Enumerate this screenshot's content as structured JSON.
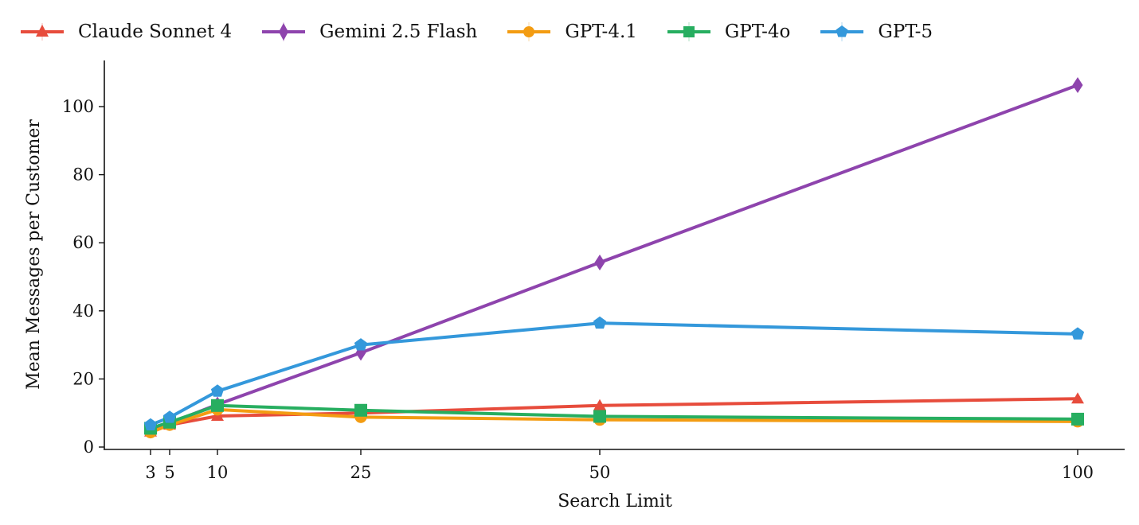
{
  "chart_data": {
    "type": "line",
    "title": "",
    "xlabel": "Search Limit",
    "ylabel": "Mean Messages per Customer",
    "x": [
      3,
      5,
      10,
      25,
      50,
      100
    ],
    "xticks": [
      3,
      5,
      10,
      25,
      50,
      100
    ],
    "yticks": [
      0,
      20,
      40,
      60,
      80,
      100
    ],
    "xlim": [
      -6.5,
      104.8
    ],
    "ylim": [
      -0.5,
      113.5
    ],
    "grid": false,
    "legend_position": "top",
    "series": [
      {
        "name": "Claude Sonnet 4",
        "color": "#e74c3c",
        "marker": "triangle",
        "values": [
          4.5,
          6.5,
          9.1,
          10.0,
          12.2,
          14.2
        ]
      },
      {
        "name": "Gemini 2.5 Flash",
        "color": "#8e44ad",
        "marker": "diamond",
        "values": [
          5.5,
          7.0,
          12.5,
          27.7,
          54.2,
          106.3
        ]
      },
      {
        "name": "GPT-4.1",
        "color": "#f39c12",
        "marker": "circle",
        "values": [
          4.3,
          6.5,
          11.0,
          8.8,
          8.0,
          7.5
        ]
      },
      {
        "name": "GPT-4o",
        "color": "#27ae60",
        "marker": "square",
        "values": [
          5.5,
          7.3,
          12.2,
          10.8,
          9.0,
          8.2
        ]
      },
      {
        "name": "GPT-5",
        "color": "#3498db",
        "marker": "pentagon",
        "values": [
          6.5,
          8.7,
          16.4,
          30.0,
          36.4,
          33.2
        ]
      }
    ]
  },
  "legend": {
    "items": [
      {
        "label": "Claude Sonnet 4"
      },
      {
        "label": "Gemini 2.5 Flash"
      },
      {
        "label": "GPT-4.1"
      },
      {
        "label": "GPT-4o"
      },
      {
        "label": "GPT-5"
      }
    ]
  },
  "axes": {
    "xlabel": "Search Limit",
    "ylabel": "Mean Messages per Customer"
  }
}
